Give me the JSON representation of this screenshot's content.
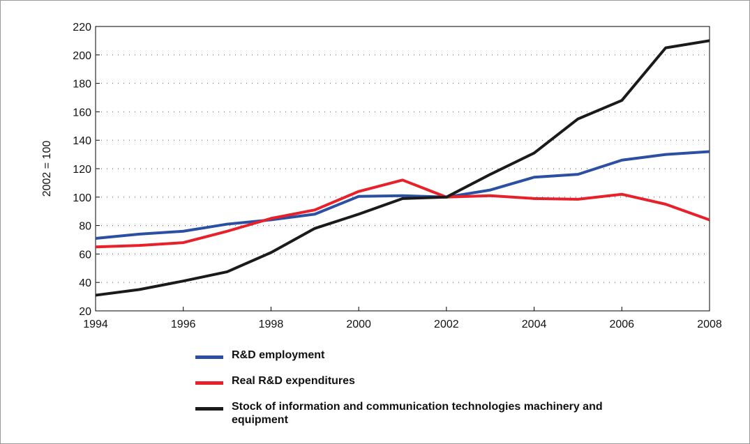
{
  "chart_data": {
    "type": "line",
    "y_label": "2002 = 100",
    "x": [
      1994,
      1995,
      1996,
      1997,
      1998,
      1999,
      2000,
      2001,
      2002,
      2003,
      2004,
      2005,
      2006,
      2007,
      2008
    ],
    "series": [
      {
        "name": "R&D employment",
        "color": "#2b4fa3",
        "values": [
          71,
          74,
          76,
          81,
          84,
          88,
          100.5,
          101,
          100,
          105,
          114,
          116,
          126,
          130,
          132
        ]
      },
      {
        "name": "Real R&D expenditures",
        "color": "#e8202a",
        "values": [
          65,
          66,
          68,
          76,
          85,
          91,
          104,
          112,
          100,
          101,
          99,
          98.5,
          102,
          95,
          84
        ]
      },
      {
        "name": "Stock of information and communication technologies machinery and equipment",
        "color": "#1a1a1a",
        "values": [
          31,
          35,
          41,
          47.5,
          61,
          78,
          88,
          99,
          100,
          116,
          131,
          155,
          168,
          205,
          210
        ]
      }
    ],
    "xlim": [
      1994,
      2008
    ],
    "xticks": [
      1994,
      1996,
      1998,
      2000,
      2002,
      2004,
      2006,
      2008
    ],
    "ylim": [
      20,
      220
    ],
    "yticks": [
      20,
      40,
      60,
      80,
      100,
      120,
      140,
      160,
      180,
      200,
      220
    ],
    "grid": true
  }
}
